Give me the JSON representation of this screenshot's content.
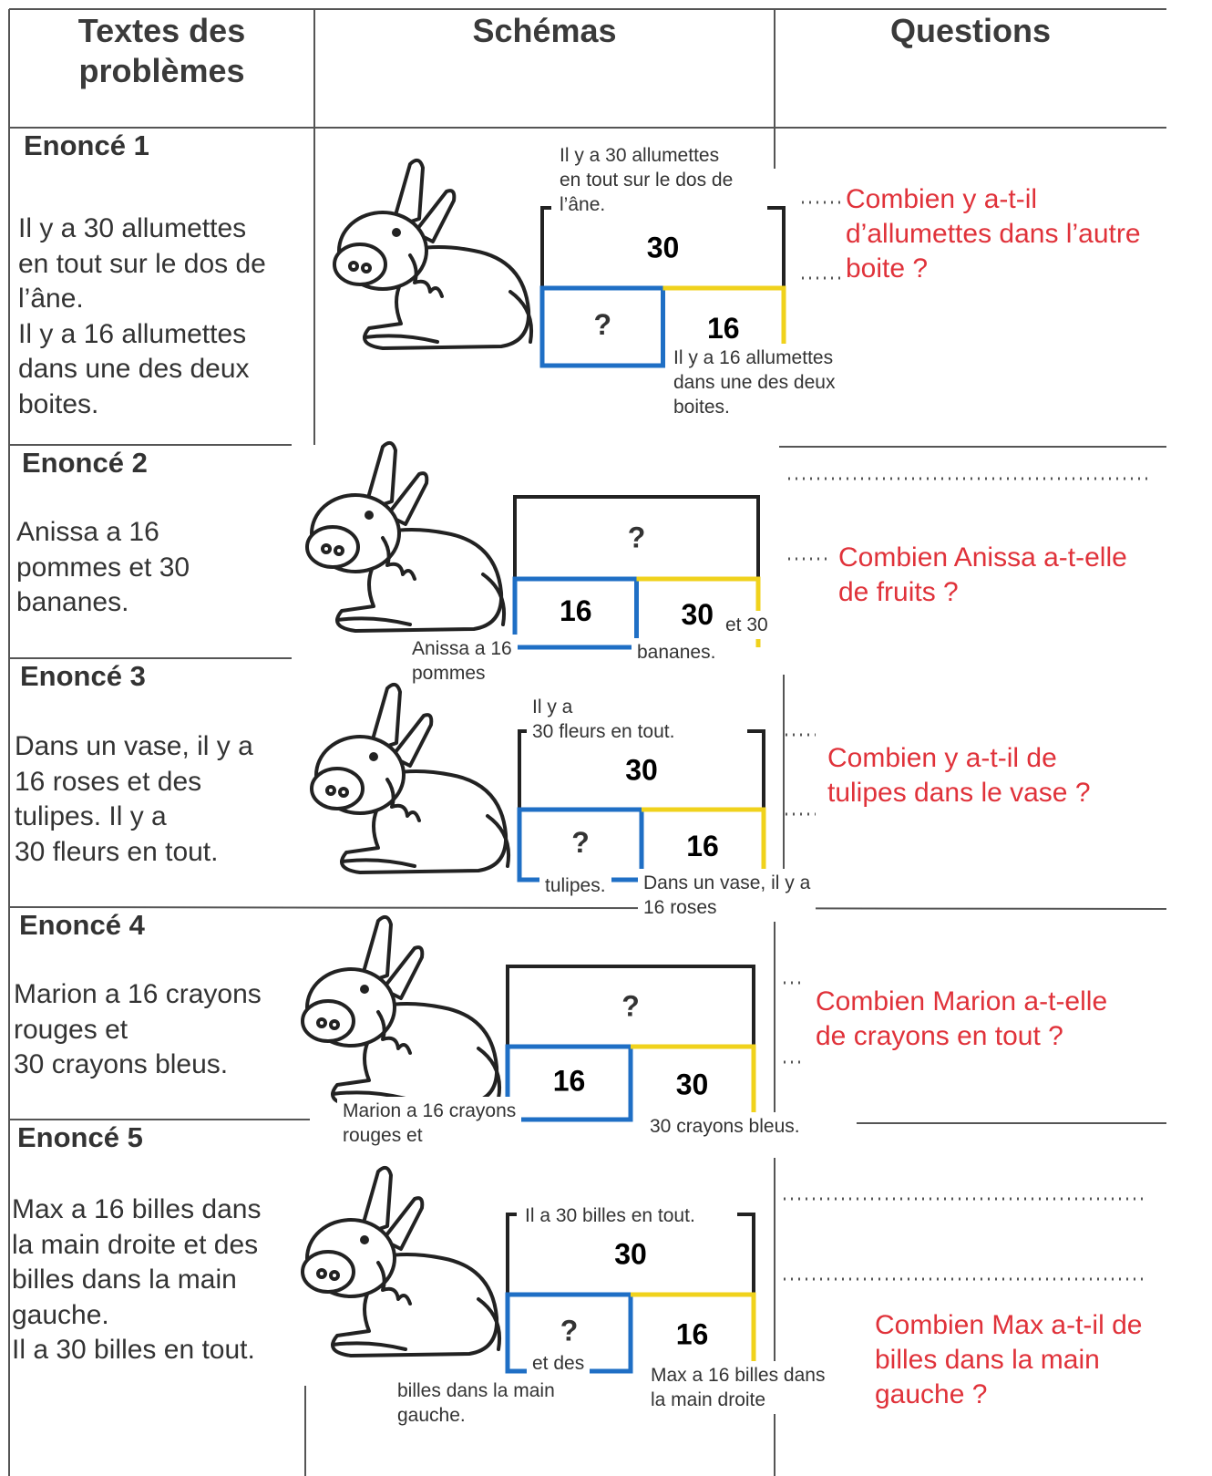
{
  "table": {
    "header": [
      "Textes des problèmes",
      "Schémas",
      "Questions"
    ],
    "rows": [
      {
        "label": "Enoncé 1",
        "text": [
          "Il y a 30 allumettes",
          "en tout sur le dos de",
          "l’âne.",
          "Il y a 16 allumettes",
          "dans une des deux",
          "boites."
        ],
        "schema": {
          "top": "30",
          "left": "?",
          "right": "16",
          "notes": [
            [
              "Il y a 30 allumettes",
              "en tout sur le dos de",
              "l’âne."
            ],
            [
              "Il y a 16 allumettes",
              "dans une des deux",
              "boites."
            ]
          ]
        },
        "question": [
          "Combien y a-t-il",
          "d’allumettes dans l’autre",
          "boite ?"
        ]
      },
      {
        "label": "Enoncé 2",
        "text": [
          "Anissa a 16",
          "pommes et 30",
          "bananes."
        ],
        "schema": {
          "top": "?",
          "left": "16",
          "right": "30",
          "notes": [
            [
              "et 30"
            ],
            [
              "Anissa a 16",
              "pommes"
            ],
            [
              "bananes."
            ]
          ]
        },
        "question": [
          "Combien Anissa a-t-elle",
          "de fruits ?"
        ]
      },
      {
        "label": "Enoncé 3",
        "text": [
          "Dans un vase, il y a",
          "16 roses et des",
          "tulipes. Il y a",
          "30 fleurs en tout."
        ],
        "schema": {
          "top": "30",
          "left": "?",
          "right": "16",
          "notes": [
            [
              "Il y a",
              "30 fleurs en tout."
            ],
            [
              "tulipes."
            ],
            [
              "Dans un vase, il y a",
              "16 roses"
            ]
          ]
        },
        "question": [
          "Combien y a-t-il de",
          "tulipes dans le vase ?"
        ]
      },
      {
        "label": "Enoncé 4",
        "text": [
          "Marion a 16 crayons",
          "rouges et",
          "30 crayons bleus."
        ],
        "schema": {
          "top": "?",
          "left": "16",
          "right": "30",
          "notes": [
            [
              "Marion a 16 crayons",
              "rouges et"
            ],
            [
              "30 crayons bleus."
            ]
          ]
        },
        "question": [
          "Combien Marion a-t-elle",
          "de crayons en tout ?"
        ]
      },
      {
        "label": "Enoncé 5",
        "text": [
          "Max a 16 billes dans",
          "la main droite et des",
          "billes dans la main",
          "gauche.",
          "Il a 30 billes en tout."
        ],
        "schema": {
          "top": "30",
          "left": "?",
          "right": "16",
          "notes": [
            [
              "Il a 30 billes en tout."
            ],
            [
              "et des"
            ],
            [
              "billes dans la main",
              "gauche."
            ],
            [
              "Max a 16 billes dans",
              "la main droite"
            ]
          ]
        },
        "question": [
          "Combien Max a-t-il de",
          "billes dans la main",
          "gauche ?"
        ]
      }
    ]
  }
}
